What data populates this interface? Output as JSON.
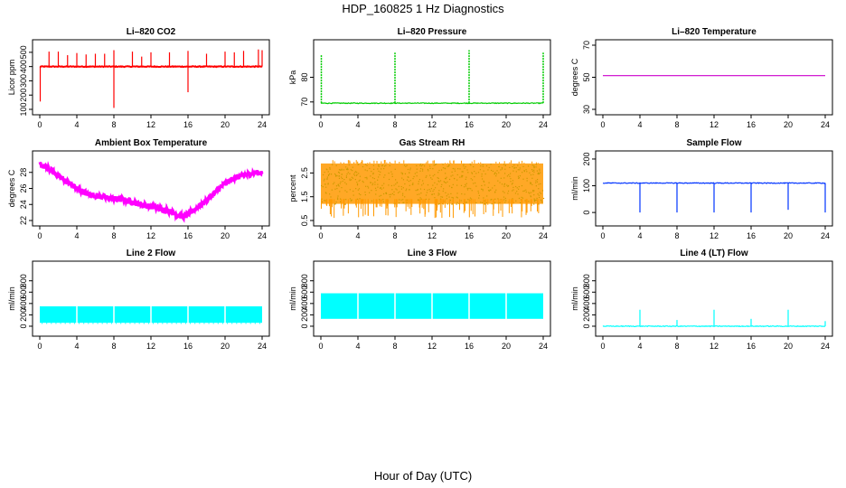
{
  "figure": {
    "title": "HDP_160825  1 Hz Diagnostics",
    "xlabel": "Hour of Day (UTC)"
  },
  "chart_data": [
    {
      "type": "line",
      "title": "Li–820 CO2",
      "ylabel": "Licor ppm",
      "color": "#ff0000",
      "xlim": [
        0,
        24
      ],
      "ylim": [
        100,
        550
      ],
      "xticks": [
        0,
        4,
        8,
        12,
        16,
        20,
        24
      ],
      "yticks": [
        100,
        200,
        300,
        400,
        500
      ],
      "baseline": 400,
      "spikes_up": [
        [
          1,
          505
        ],
        [
          2,
          505
        ],
        [
          3,
          480
        ],
        [
          4,
          495
        ],
        [
          5,
          485
        ],
        [
          6,
          490
        ],
        [
          7,
          490
        ],
        [
          8,
          515
        ],
        [
          10,
          505
        ],
        [
          11,
          470
        ],
        [
          12,
          500
        ],
        [
          14,
          500
        ],
        [
          16,
          510
        ],
        [
          18,
          490
        ],
        [
          20,
          505
        ],
        [
          21,
          500
        ],
        [
          22,
          510
        ],
        [
          23.6,
          520
        ],
        [
          24,
          515
        ]
      ],
      "spikes_down": [
        [
          0.05,
          155
        ],
        [
          8,
          110
        ],
        [
          16,
          220
        ]
      ]
    },
    {
      "type": "line",
      "title": "Li–820 Pressure",
      "ylabel": "kPa",
      "color": "#00cc00",
      "xlim": [
        0,
        24
      ],
      "ylim": [
        67,
        93
      ],
      "xticks": [
        0,
        4,
        8,
        12,
        16,
        20,
        24
      ],
      "yticks": [
        70,
        80
      ],
      "baseline": 69.5,
      "spikes_up": [
        [
          0.05,
          89
        ],
        [
          8,
          90
        ],
        [
          16,
          91
        ],
        [
          24,
          90
        ]
      ],
      "spikes_down": []
    },
    {
      "type": "line",
      "title": "Li–820 Temperature",
      "ylabel": "degrees C",
      "color": "#cc00cc",
      "xlim": [
        0,
        24
      ],
      "ylim": [
        30,
        70
      ],
      "xticks": [
        0,
        4,
        8,
        12,
        16,
        20,
        24
      ],
      "yticks": [
        30,
        50,
        70
      ],
      "baseline": 51,
      "spikes_up": [],
      "spikes_down": []
    },
    {
      "type": "line",
      "title": "Ambient Box Temperature",
      "ylabel": "degrees C",
      "color": "#ff00ff",
      "xlim": [
        0,
        24
      ],
      "ylim": [
        22,
        30
      ],
      "xticks": [
        0,
        4,
        8,
        12,
        16,
        20,
        24
      ],
      "yticks": [
        22,
        24,
        26,
        28
      ],
      "x": [
        0,
        1,
        2,
        3,
        4,
        5,
        6,
        7,
        8,
        9,
        10,
        11,
        12,
        13,
        14,
        15,
        15.5,
        16,
        17,
        18,
        19,
        20,
        21,
        22,
        23,
        24
      ],
      "y": [
        29.0,
        28.4,
        27.6,
        26.8,
        26.0,
        25.4,
        25.1,
        24.9,
        24.7,
        24.6,
        24.3,
        24.0,
        23.7,
        23.5,
        23.2,
        22.6,
        22.5,
        22.8,
        23.6,
        24.5,
        25.6,
        26.6,
        27.3,
        27.6,
        27.9,
        28.0
      ],
      "noise": 0.35
    },
    {
      "type": "scatter",
      "title": "Gas Stream RH",
      "ylabel": "percent",
      "color": "#ff9900",
      "color2": "#cc9900",
      "xlim": [
        0,
        24
      ],
      "ylim": [
        0.5,
        3.2
      ],
      "xticks": [
        0,
        4,
        8,
        12,
        16,
        20,
        24
      ],
      "yticks": [
        0.5,
        1.5,
        2.5
      ],
      "band": [
        1.2,
        2.9
      ],
      "dips_to": 0.6
    },
    {
      "type": "line",
      "title": "Sample Flow",
      "ylabel": "ml/min",
      "color": "#0033ff",
      "xlim": [
        0,
        24
      ],
      "ylim": [
        -30,
        210
      ],
      "xticks": [
        0,
        4,
        8,
        12,
        16,
        20,
        24
      ],
      "yticks": [
        0,
        100,
        200
      ],
      "baseline": 110,
      "spikes_up": [],
      "spikes_down": [
        [
          4,
          0
        ],
        [
          8,
          0
        ],
        [
          12,
          0
        ],
        [
          16,
          0
        ],
        [
          20,
          10
        ],
        [
          24,
          0
        ]
      ]
    },
    {
      "type": "line",
      "title": "Line 2 Flow",
      "ylabel": "ml/min",
      "color": "#00ffff",
      "xlim": [
        0,
        24
      ],
      "ylim": [
        -80,
        1050
      ],
      "xticks": [
        0,
        4,
        8,
        12,
        16,
        20,
        24
      ],
      "yticks": [
        0,
        200,
        400,
        600,
        800
      ],
      "band": [
        60,
        350
      ],
      "gaps": [
        4,
        8,
        12,
        16,
        20
      ]
    },
    {
      "type": "line",
      "title": "Line 3 Flow",
      "ylabel": "ml/min",
      "color": "#00ffff",
      "xlim": [
        0,
        24
      ],
      "ylim": [
        -80,
        1050
      ],
      "xticks": [
        0,
        4,
        8,
        12,
        16,
        20,
        24
      ],
      "yticks": [
        0,
        200,
        400,
        600,
        800
      ],
      "band": [
        130,
        580
      ],
      "gaps": [
        4,
        8,
        12,
        16,
        20
      ]
    },
    {
      "type": "line",
      "title": "Line 4 (LT) Flow",
      "ylabel": "ml/min",
      "color": "#00ffff",
      "xlim": [
        0,
        24
      ],
      "ylim": [
        -80,
        1050
      ],
      "xticks": [
        0,
        4,
        8,
        12,
        16,
        20,
        24
      ],
      "yticks": [
        0,
        200,
        400,
        600,
        800
      ],
      "baseline": 0,
      "spikes_up": [
        [
          4,
          290
        ],
        [
          8,
          110
        ],
        [
          12,
          290
        ],
        [
          16,
          130
        ],
        [
          20,
          290
        ],
        [
          24,
          90
        ]
      ],
      "spikes_down": []
    }
  ]
}
